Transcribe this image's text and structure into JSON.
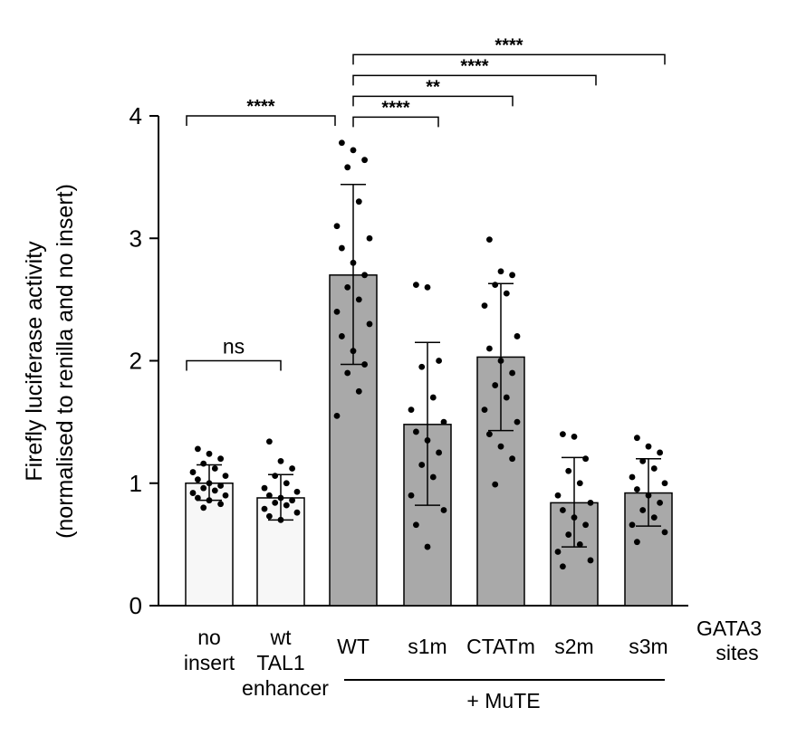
{
  "chart_data": {
    "type": "bar",
    "ylabel_line1": "Firefly luciferase activity",
    "ylabel_line2": "(normalised to renilla and no insert)",
    "ylim": [
      0,
      4
    ],
    "yticks": [
      "0",
      "1",
      "2",
      "3",
      "4"
    ],
    "categories": [
      {
        "lines": [
          "no",
          "insert"
        ],
        "color": "#000000"
      },
      {
        "lines": [
          "wt",
          "TAL1",
          "enhancer"
        ],
        "color": "#000000"
      },
      {
        "lines": [
          "WT"
        ],
        "color": "#000000"
      },
      {
        "lines": [
          "s1m"
        ],
        "color": "#8b1a9c"
      },
      {
        "lines": [
          "CTATm"
        ],
        "color": "#8b1a9c"
      },
      {
        "lines": [
          "s2m"
        ],
        "color": "#8b1a9c"
      },
      {
        "lines": [
          "s3m"
        ],
        "color": "#8b1a9c"
      }
    ],
    "values": [
      1.0,
      0.88,
      2.7,
      1.48,
      2.03,
      0.84,
      0.92
    ],
    "error_lower": [
      0.86,
      0.7,
      1.97,
      0.82,
      1.43,
      0.48,
      0.65
    ],
    "error_upper": [
      1.15,
      1.07,
      3.44,
      2.15,
      2.63,
      1.21,
      1.2
    ],
    "bar_colors": [
      "#f7f7f7",
      "#f7f7f7",
      "#a9a9a9",
      "#a9a9a9",
      "#a9a9a9",
      "#a9a9a9",
      "#a9a9a9"
    ],
    "points": [
      [
        1.28,
        1.24,
        1.2,
        1.16,
        1.12,
        1.09,
        1.06,
        1.03,
        1.0,
        0.98,
        0.96,
        0.94,
        0.92,
        0.9,
        0.88,
        0.86,
        0.83,
        0.8
      ],
      [
        1.34,
        1.18,
        1.12,
        1.06,
        1.0,
        0.96,
        0.93,
        0.9,
        0.88,
        0.86,
        0.84,
        0.82,
        0.79,
        0.76,
        0.73,
        0.7
      ],
      [
        3.78,
        3.72,
        3.64,
        3.58,
        3.3,
        3.1,
        3.0,
        2.92,
        2.8,
        2.7,
        2.6,
        2.5,
        2.4,
        2.3,
        2.2,
        2.08,
        1.97,
        1.9,
        1.75,
        1.55
      ],
      [
        2.62,
        2.6,
        2.0,
        1.95,
        1.7,
        1.6,
        1.5,
        1.42,
        1.35,
        1.25,
        1.15,
        1.05,
        0.9,
        0.78,
        0.66,
        0.48
      ],
      [
        2.99,
        2.73,
        2.7,
        2.62,
        2.55,
        2.45,
        2.2,
        2.1,
        2.0,
        1.9,
        1.8,
        1.7,
        1.6,
        1.5,
        1.4,
        1.3,
        1.2,
        0.99
      ],
      [
        1.4,
        1.38,
        1.2,
        1.1,
        1.0,
        0.9,
        0.84,
        0.78,
        0.72,
        0.66,
        0.58,
        0.5,
        0.44,
        0.37,
        0.32
      ],
      [
        1.37,
        1.3,
        1.25,
        1.18,
        1.12,
        1.05,
        1.0,
        0.95,
        0.9,
        0.84,
        0.78,
        0.72,
        0.66,
        0.6,
        0.52
      ]
    ],
    "significance": [
      {
        "from": 0,
        "to": 1,
        "label": "ns",
        "level": 2.0
      },
      {
        "from": 0,
        "to": 2,
        "label": "****",
        "level": 4.0
      },
      {
        "from": 2,
        "to": 3,
        "label": "****",
        "level": 3.99
      },
      {
        "from": 2,
        "to": 4,
        "label": "**",
        "level": 4.16
      },
      {
        "from": 2,
        "to": 5,
        "label": "****",
        "level": 4.33
      },
      {
        "from": 2,
        "to": 6,
        "label": "****",
        "level": 4.5
      }
    ],
    "group_label": "+ MuTE",
    "side_label": [
      "GATA3",
      "sites"
    ],
    "side_label_color": "#8b1a9c"
  }
}
